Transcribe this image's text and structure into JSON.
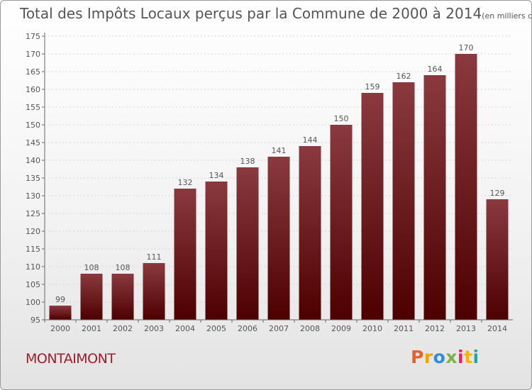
{
  "title": "Total des Impôts Locaux perçus par la Commune de 2000 à 2014",
  "title_unit": "(en milliers d'€)",
  "commune": "MONTAIMONT",
  "logo": {
    "letters": [
      "P",
      "r",
      "o",
      "x",
      "i",
      "t",
      "i"
    ],
    "colors": [
      "#e5632a",
      "#f0a500",
      "#2e8dd6",
      "#7cb342",
      "#e91e63",
      "#ffb300",
      "#26a69a"
    ],
    "text": "Proxiti"
  },
  "colors": {
    "bar_top": "#8a3a3f",
    "bar_bottom": "#4d0000",
    "commune": "#9e1d2a"
  },
  "chart_data": {
    "type": "bar",
    "title": "Total des Impôts Locaux perçus par la Commune de 2000 à 2014",
    "xlabel": "",
    "ylabel": "",
    "ylim": [
      95,
      175
    ],
    "yticks": [
      95,
      100,
      105,
      110,
      115,
      120,
      125,
      130,
      135,
      140,
      145,
      150,
      155,
      160,
      165,
      170,
      175
    ],
    "categories": [
      "2000",
      "2001",
      "2002",
      "2003",
      "2004",
      "2005",
      "2006",
      "2007",
      "2008",
      "2009",
      "2010",
      "2011",
      "2012",
      "2013",
      "2014"
    ],
    "values": [
      99,
      108,
      108,
      111,
      132,
      134,
      138,
      141,
      144,
      150,
      159,
      162,
      164,
      170,
      129
    ]
  }
}
